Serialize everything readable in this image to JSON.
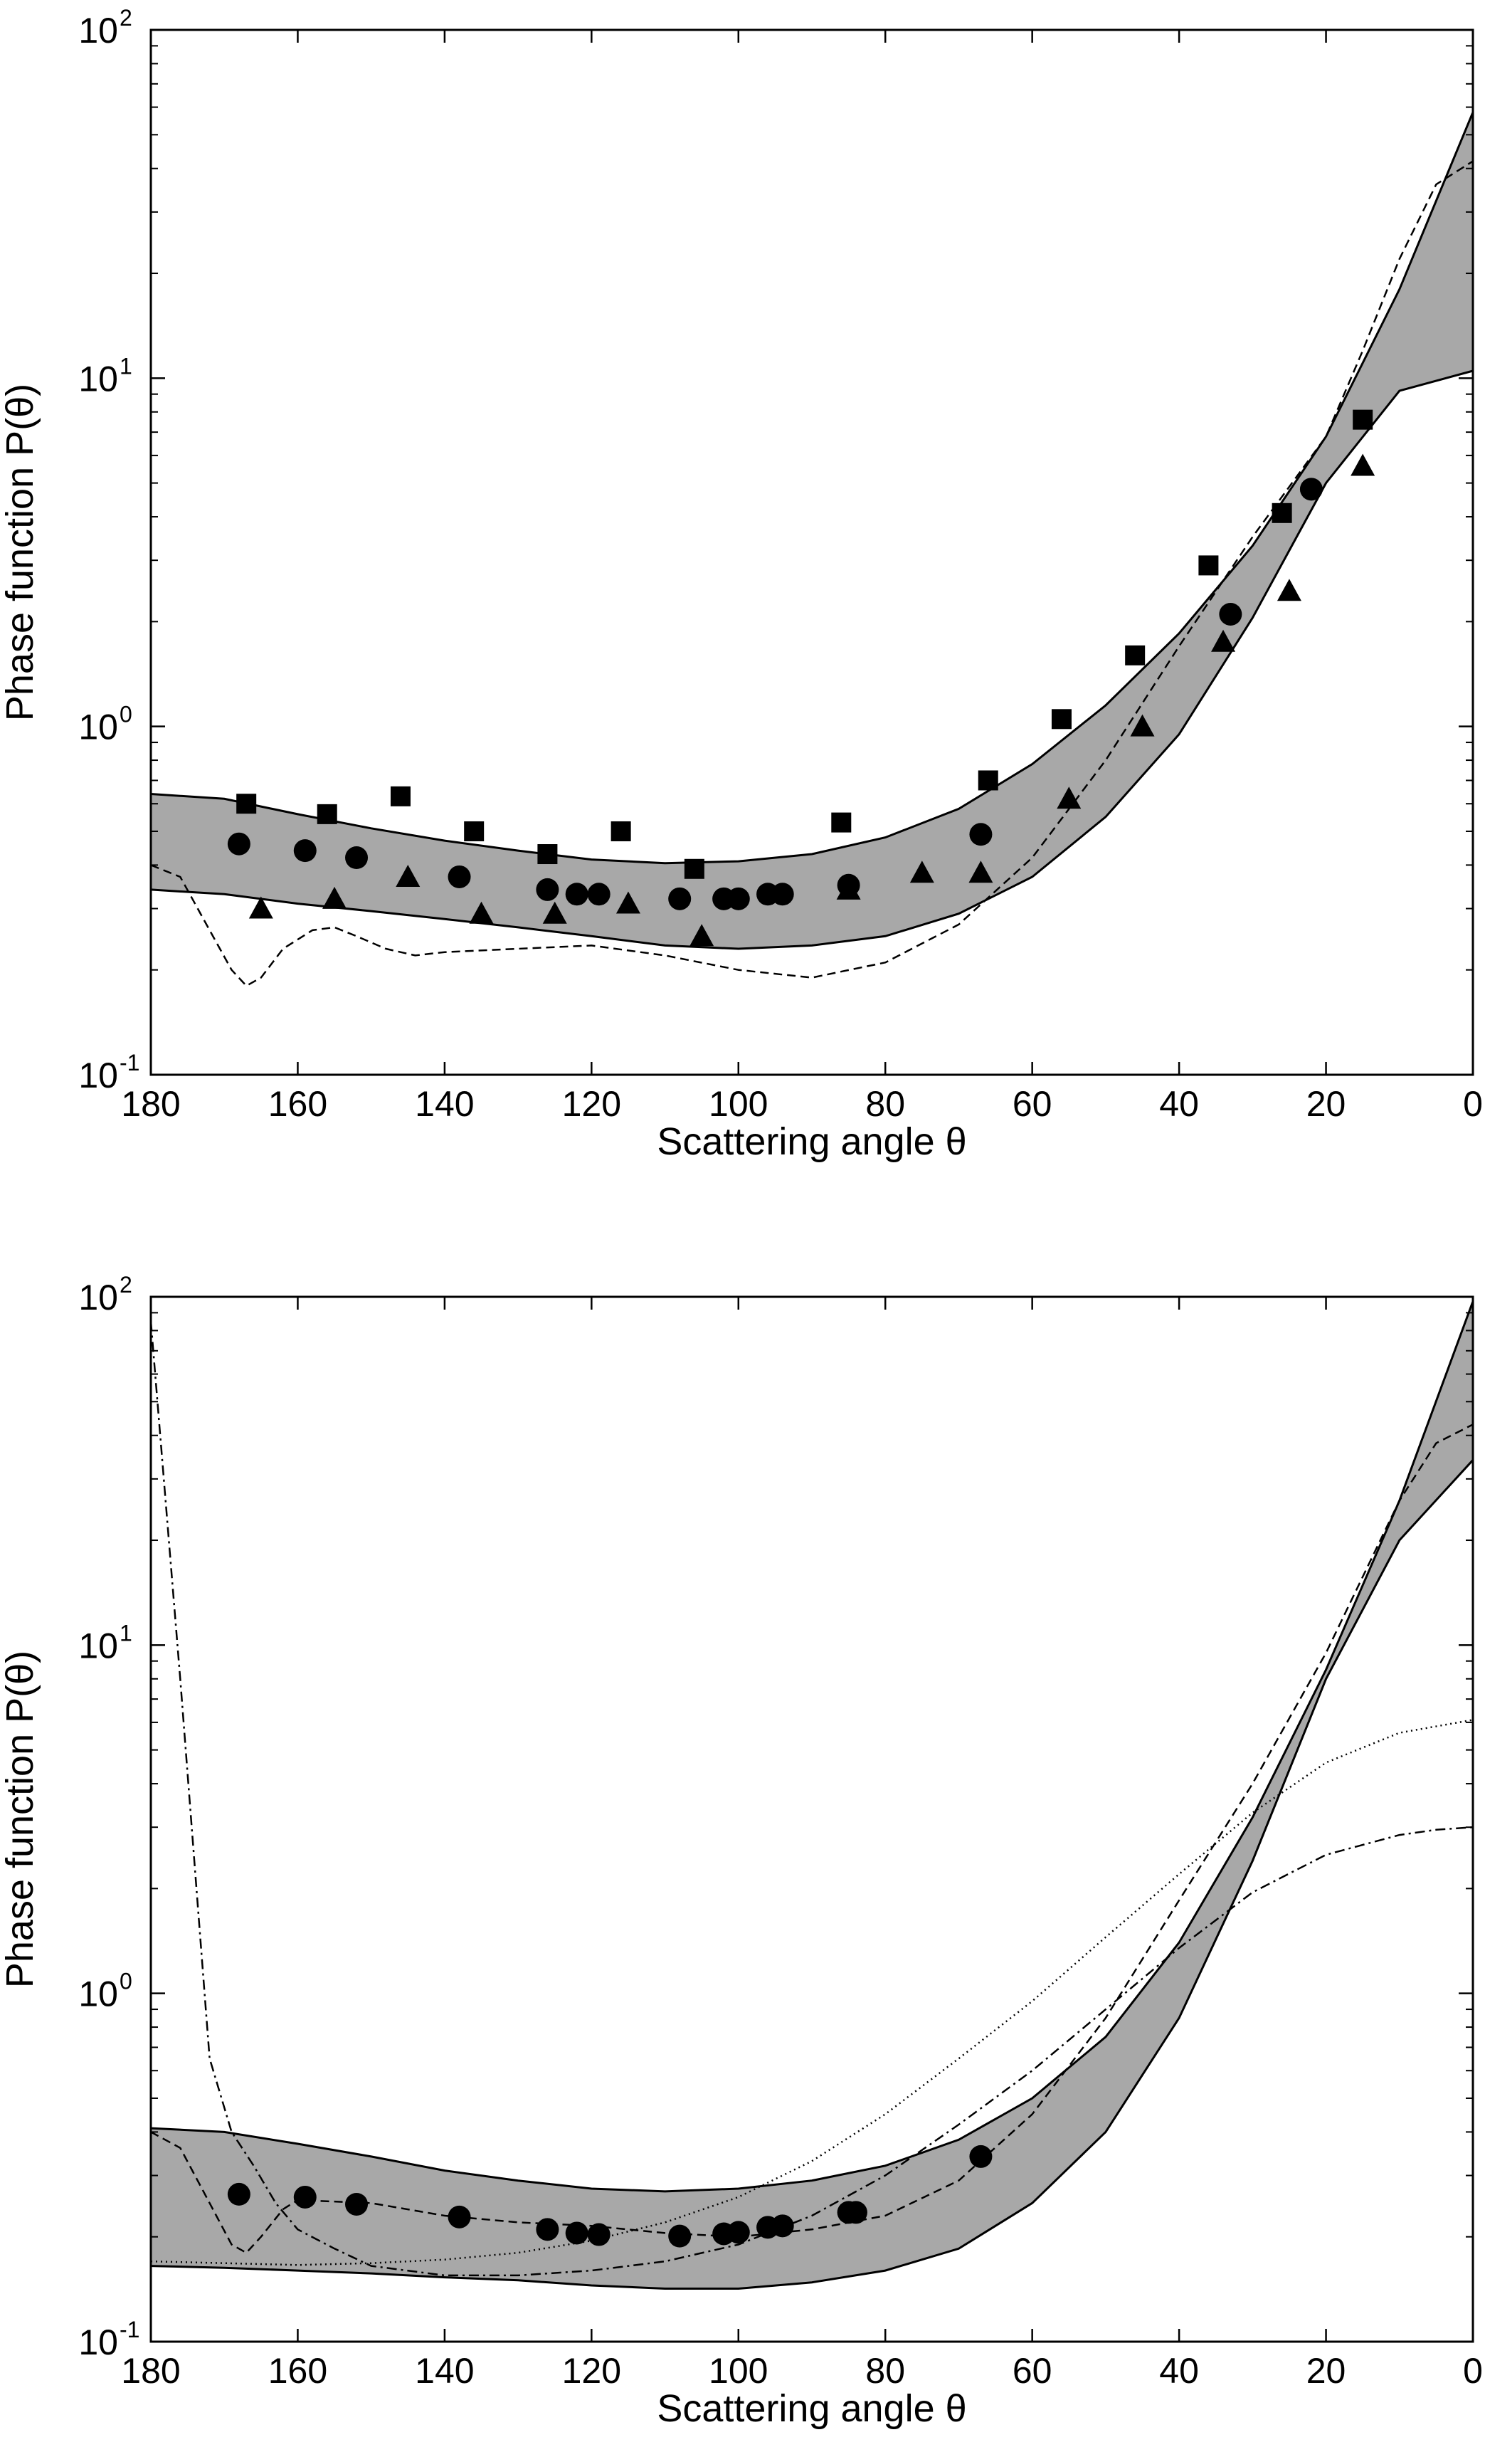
{
  "chart_data": [
    {
      "type": "scatter",
      "xlabel": "Scattering angle θ",
      "ylabel": "Phase function P(θ)",
      "xlim": [
        180,
        0
      ],
      "ylim": [
        0.1,
        100
      ],
      "yscale": "log",
      "x_ticks": [
        "180",
        "160",
        "140",
        "120",
        "100",
        "80",
        "60",
        "40",
        "20",
        "0"
      ],
      "y_ticks": [
        {
          "base": "10",
          "exp": "-1"
        },
        {
          "base": "10",
          "exp": "0"
        },
        {
          "base": "10",
          "exp": "1"
        },
        {
          "base": "10",
          "exp": "2"
        }
      ],
      "grid": false,
      "colors": {
        "band_fill": "#a8a8a8",
        "line": "#000000"
      },
      "band": {
        "x": [
          180,
          170,
          160,
          150,
          140,
          130,
          120,
          110,
          100,
          90,
          80,
          70,
          60,
          50,
          40,
          30,
          20,
          10,
          0
        ],
        "upper": [
          0.64,
          0.62,
          0.56,
          0.51,
          0.47,
          0.44,
          0.415,
          0.405,
          0.41,
          0.43,
          0.48,
          0.58,
          0.78,
          1.15,
          1.85,
          3.3,
          6.8,
          18,
          58
        ],
        "lower": [
          0.34,
          0.33,
          0.31,
          0.295,
          0.28,
          0.265,
          0.25,
          0.235,
          0.23,
          0.235,
          0.25,
          0.29,
          0.37,
          0.55,
          0.95,
          2.05,
          5.0,
          9.2,
          10.5
        ]
      },
      "series": [
        {
          "marker": "square",
          "x": [
            167,
            156,
            146,
            136,
            126,
            116,
            106,
            86,
            66,
            56,
            46,
            36,
            26,
            15
          ],
          "y": [
            0.6,
            0.56,
            0.63,
            0.5,
            0.43,
            0.5,
            0.39,
            0.53,
            0.7,
            1.05,
            1.6,
            2.9,
            4.1,
            7.6
          ]
        },
        {
          "marker": "circle",
          "x": [
            168,
            159,
            152,
            138,
            126,
            122,
            119,
            108,
            102,
            100,
            96,
            94,
            85,
            67,
            33,
            22
          ],
          "y": [
            0.46,
            0.44,
            0.42,
            0.37,
            0.34,
            0.33,
            0.33,
            0.32,
            0.32,
            0.32,
            0.33,
            0.33,
            0.35,
            0.49,
            2.1,
            4.8
          ]
        },
        {
          "marker": "triangle",
          "x": [
            165,
            155,
            145,
            135,
            125,
            115,
            105,
            85,
            75,
            67,
            55,
            45,
            34,
            25,
            15
          ],
          "y": [
            0.3,
            0.32,
            0.37,
            0.29,
            0.29,
            0.31,
            0.25,
            0.34,
            0.38,
            0.38,
            0.62,
            1.0,
            1.75,
            2.45,
            5.6
          ]
        },
        {
          "style": "dashed",
          "x": [
            180,
            176,
            172,
            169,
            167,
            165,
            162,
            158,
            155,
            152,
            148,
            144,
            140,
            130,
            120,
            110,
            100,
            90,
            80,
            70,
            60,
            50,
            40,
            30,
            20,
            15,
            10,
            5,
            0
          ],
          "y": [
            0.4,
            0.37,
            0.26,
            0.2,
            0.18,
            0.19,
            0.23,
            0.26,
            0.265,
            0.25,
            0.23,
            0.22,
            0.225,
            0.23,
            0.235,
            0.22,
            0.2,
            0.19,
            0.21,
            0.27,
            0.42,
            0.8,
            1.7,
            3.5,
            6.8,
            12.0,
            22.0,
            36.0,
            42.0
          ]
        }
      ]
    },
    {
      "type": "scatter",
      "xlabel": "Scattering angle θ",
      "ylabel": "Phase function P(θ)",
      "xlim": [
        180,
        0
      ],
      "ylim": [
        0.1,
        100
      ],
      "yscale": "log",
      "x_ticks": [
        "180",
        "160",
        "140",
        "120",
        "100",
        "80",
        "60",
        "40",
        "20",
        "0"
      ],
      "y_ticks": [
        {
          "base": "10",
          "exp": "-1"
        },
        {
          "base": "10",
          "exp": "0"
        },
        {
          "base": "10",
          "exp": "1"
        },
        {
          "base": "10",
          "exp": "2"
        }
      ],
      "grid": false,
      "colors": {
        "band_fill": "#a8a8a8",
        "line": "#000000"
      },
      "band": {
        "x": [
          180,
          170,
          160,
          150,
          140,
          130,
          120,
          110,
          100,
          90,
          80,
          70,
          60,
          50,
          40,
          30,
          20,
          10,
          0
        ],
        "upper": [
          0.41,
          0.4,
          0.37,
          0.34,
          0.31,
          0.29,
          0.275,
          0.27,
          0.275,
          0.29,
          0.32,
          0.38,
          0.5,
          0.75,
          1.4,
          3.2,
          8.5,
          26.0,
          97.0
        ],
        "lower": [
          0.165,
          0.163,
          0.16,
          0.157,
          0.153,
          0.15,
          0.145,
          0.142,
          0.142,
          0.148,
          0.16,
          0.185,
          0.25,
          0.4,
          0.85,
          2.4,
          8.0,
          20.0,
          34.0
        ]
      },
      "series": [
        {
          "marker": "circle",
          "x": [
            168,
            159,
            152,
            138,
            126,
            122,
            119,
            108,
            102,
            100,
            96,
            94,
            85,
            84,
            67
          ],
          "y": [
            0.265,
            0.26,
            0.248,
            0.228,
            0.21,
            0.205,
            0.203,
            0.201,
            0.204,
            0.206,
            0.213,
            0.215,
            0.235,
            0.235,
            0.34
          ]
        },
        {
          "style": "dashed",
          "x": [
            180,
            176,
            172,
            169,
            167,
            165,
            162,
            160,
            150,
            140,
            130,
            120,
            110,
            100,
            90,
            80,
            70,
            60,
            50,
            40,
            30,
            20,
            10,
            5,
            0
          ],
          "y": [
            0.4,
            0.36,
            0.25,
            0.19,
            0.18,
            0.2,
            0.24,
            0.255,
            0.25,
            0.23,
            0.22,
            0.215,
            0.205,
            0.2,
            0.21,
            0.23,
            0.29,
            0.45,
            0.85,
            1.85,
            4.0,
            9.5,
            26.0,
            38.0,
            43.0
          ]
        },
        {
          "style": "dotted",
          "x": [
            180,
            170,
            160,
            150,
            140,
            130,
            120,
            110,
            100,
            90,
            80,
            70,
            60,
            50,
            40,
            30,
            20,
            10,
            0
          ],
          "y": [
            0.17,
            0.168,
            0.166,
            0.168,
            0.172,
            0.18,
            0.195,
            0.22,
            0.26,
            0.33,
            0.45,
            0.65,
            0.95,
            1.45,
            2.2,
            3.3,
            4.6,
            5.6,
            6.1
          ]
        },
        {
          "style": "dash-dot",
          "x": [
            180,
            176,
            172,
            169,
            166,
            163,
            160,
            155,
            150,
            140,
            130,
            120,
            110,
            100,
            90,
            80,
            70,
            60,
            50,
            40,
            30,
            20,
            10,
            5,
            0
          ],
          "y": [
            85.0,
            8.0,
            0.65,
            0.4,
            0.32,
            0.25,
            0.21,
            0.185,
            0.165,
            0.155,
            0.155,
            0.16,
            0.17,
            0.19,
            0.23,
            0.3,
            0.42,
            0.6,
            0.9,
            1.35,
            1.95,
            2.5,
            2.85,
            2.95,
            3.0
          ]
        }
      ]
    }
  ]
}
